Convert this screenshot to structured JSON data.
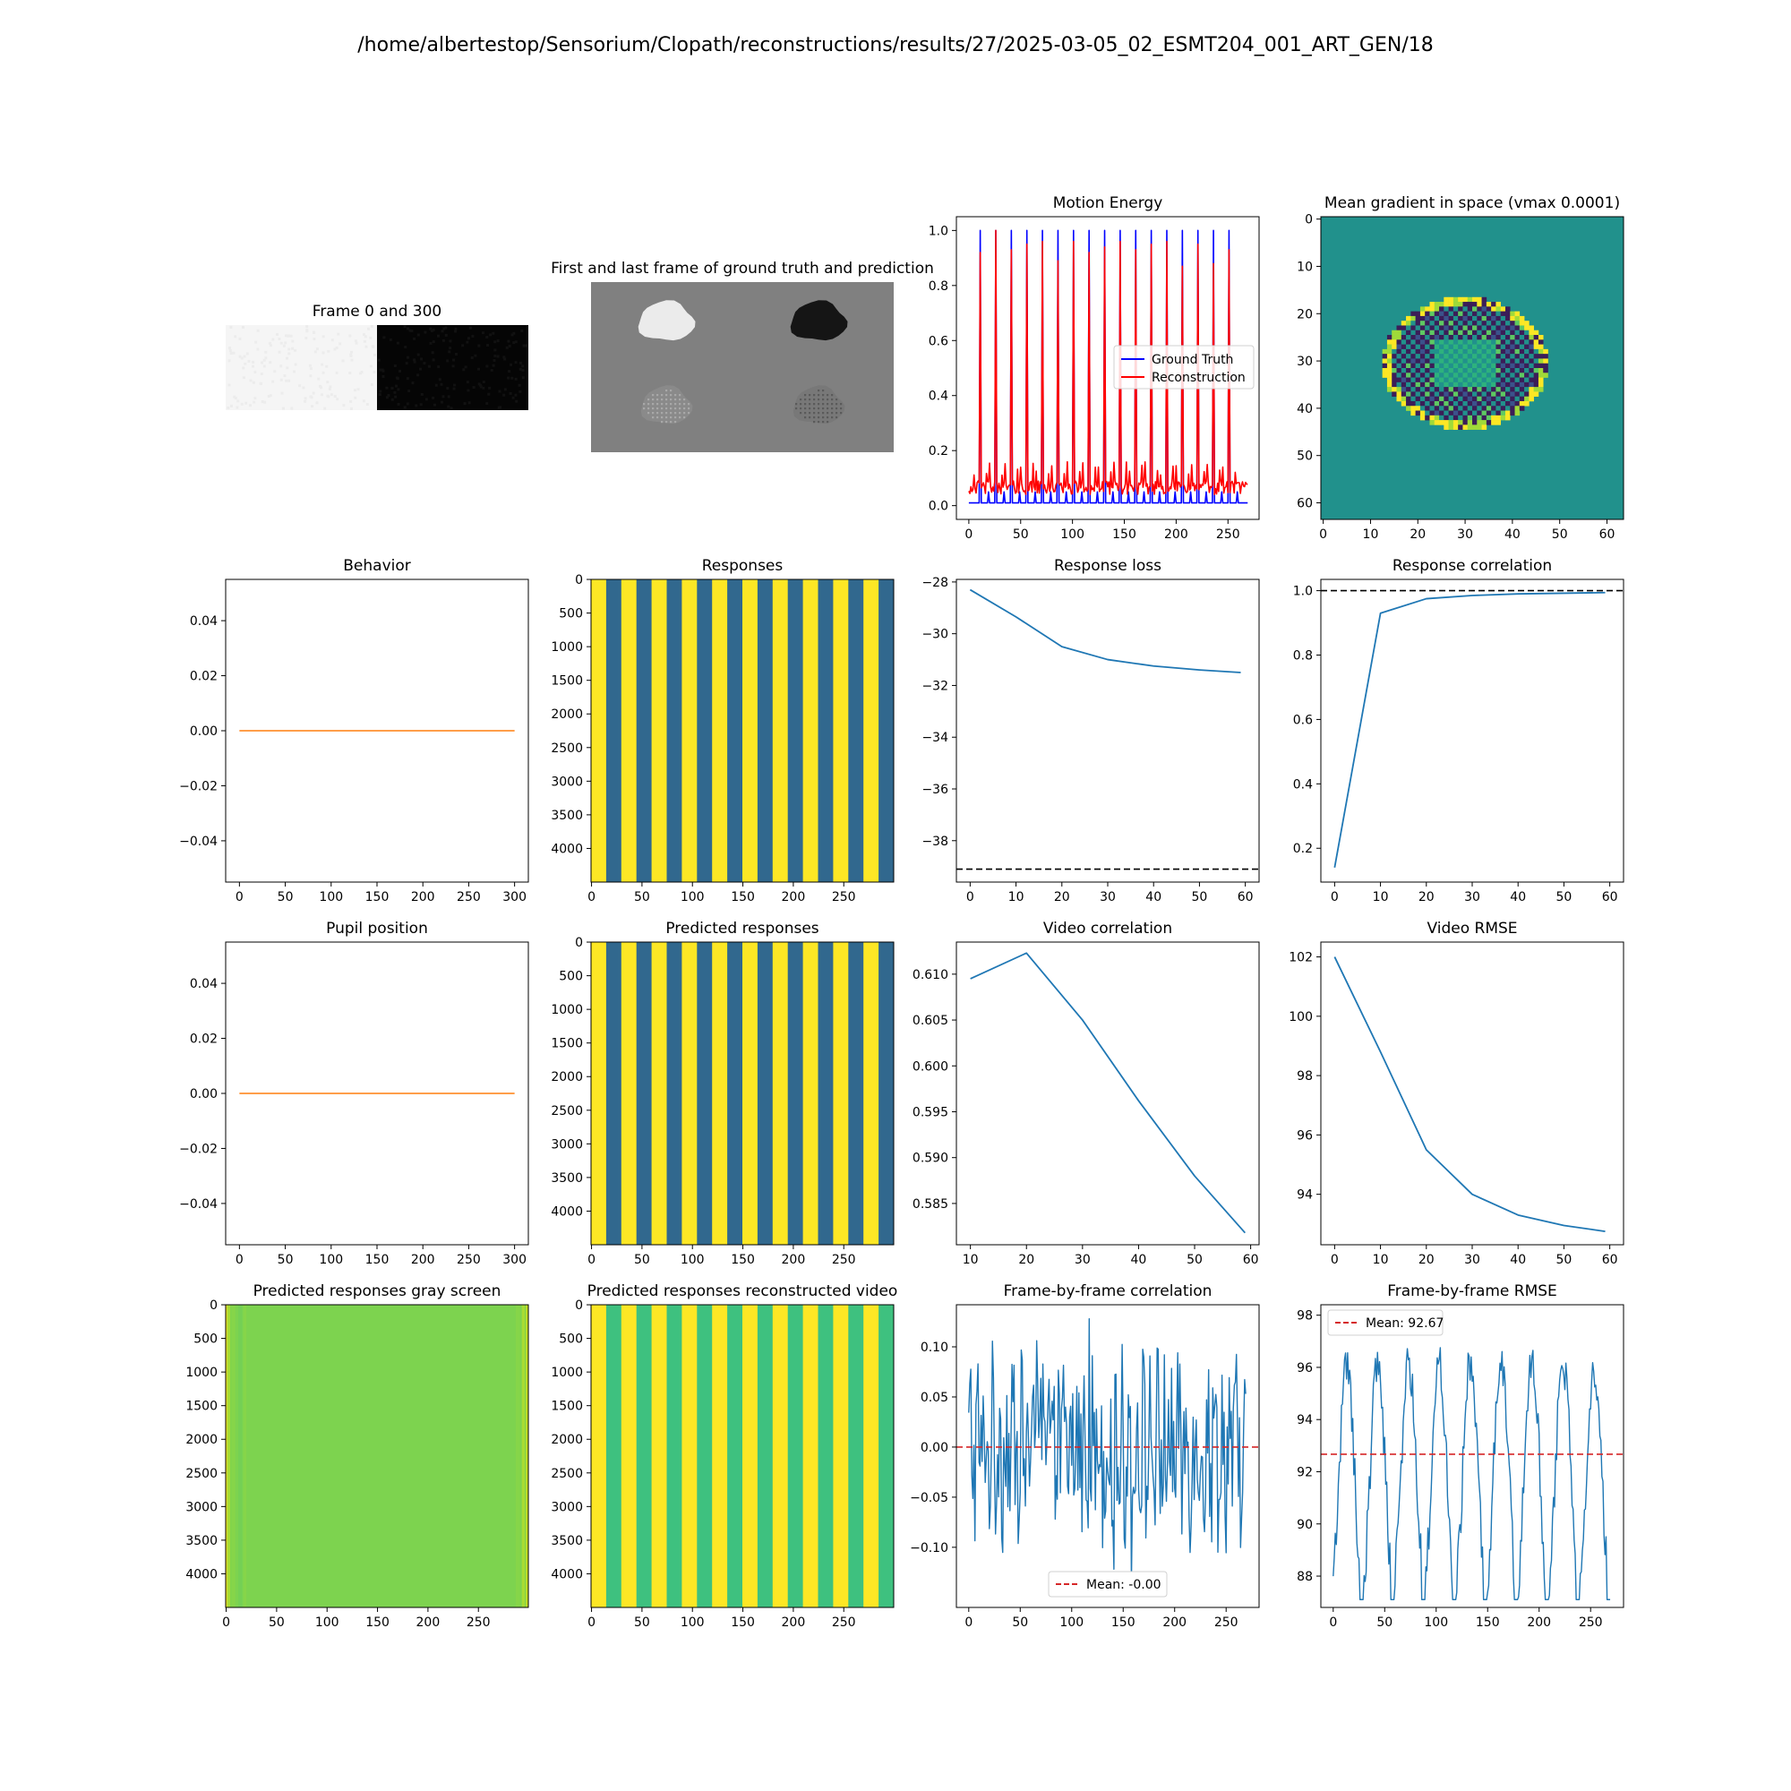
{
  "figure": {
    "suptitle": "/home/albertestop/Sensorium/Clopath/reconstructions/results/27/2025-03-05_02_ESMT204_001_ART_GEN/18"
  },
  "colors": {
    "ground_truth": "#0000ff",
    "reconstruction": "#ff0000",
    "line": "#1f77b4",
    "behavior_line": "#ff7f0e",
    "reference_dashed": "#000000",
    "mean_dashed": "#d62728",
    "viridis_yellow": "#fde725",
    "viridis_teal": "#31688e",
    "viridis_green": "#3ec17f",
    "viridis_lightgreen": "#7dd34f",
    "viridis_darkpurple": "#3b1d58",
    "viridis_mid": "#21918c"
  },
  "chart_data": [
    {
      "id": "frame-0-300",
      "type": "image",
      "title": "Frame 0 and 300",
      "panels": [
        "light",
        "dark"
      ]
    },
    {
      "id": "first-last",
      "type": "image",
      "title": "First and last frame of ground truth and prediction"
    },
    {
      "id": "motion-energy",
      "type": "line",
      "title": "Motion Energy",
      "xlim": [
        -12,
        280
      ],
      "ylim": [
        -0.05,
        1.05
      ],
      "xticks": [
        0,
        50,
        100,
        150,
        200,
        250
      ],
      "yticks": [
        0.0,
        0.2,
        0.4,
        0.6,
        0.8,
        1.0
      ],
      "ytick_labels": [
        "0.0",
        "0.2",
        "0.4",
        "0.6",
        "0.8",
        "1.0"
      ],
      "legend": [
        "Ground Truth",
        "Reconstruction"
      ],
      "legend_loc": "center right",
      "spike_positions": [
        11,
        26,
        41,
        56,
        71,
        86,
        101,
        116,
        131,
        146,
        161,
        176,
        191,
        206,
        221,
        236,
        251
      ],
      "gt_spike_height": 1.0,
      "gt_baseline": 0.01,
      "recon_spike_heights": [
        0.92,
        1.0,
        0.93,
        0.95,
        0.96,
        0.89,
        0.96,
        0.92,
        0.94,
        0.96,
        0.93,
        0.95,
        0.96,
        0.87,
        0.95,
        0.88,
        0.93
      ],
      "recon_baseline": 0.04,
      "x_end": 269
    },
    {
      "id": "mean-gradient",
      "type": "heatmap",
      "title": "Mean gradient in space (vmax 0.0001)",
      "xlim": [
        -0.5,
        63.5
      ],
      "ylim": [
        63.5,
        -0.5
      ],
      "xticks": [
        0,
        10,
        20,
        30,
        40,
        50,
        60
      ],
      "yticks": [
        0,
        10,
        20,
        30,
        40,
        50,
        60
      ],
      "ellipse": {
        "cx": 30,
        "cy": 30.5,
        "rx": 17.5,
        "ry": 14
      }
    },
    {
      "id": "behavior",
      "type": "line",
      "title": "Behavior",
      "xlim": [
        -15,
        315
      ],
      "ylim": [
        -0.055,
        0.055
      ],
      "xticks": [
        0,
        50,
        100,
        150,
        200,
        250,
        300
      ],
      "yticks": [
        -0.04,
        -0.02,
        0.0,
        0.02,
        0.04
      ],
      "ytick_labels": [
        "−0.04",
        "−0.02",
        "0.00",
        "0.02",
        "0.04"
      ],
      "x": [
        0,
        300
      ],
      "y": [
        0,
        0
      ]
    },
    {
      "id": "responses",
      "type": "heatmap",
      "title": "Responses",
      "xlim": [
        -0.5,
        299.5
      ],
      "ylim": [
        4500,
        -0.5
      ],
      "xticks": [
        0,
        50,
        100,
        150,
        200,
        250
      ],
      "yticks": [
        0,
        500,
        1000,
        1500,
        2000,
        2500,
        3000,
        3500,
        4000
      ],
      "stripe_period": 30,
      "stripe_colors": [
        "#fde725",
        "#31688e"
      ]
    },
    {
      "id": "response-loss",
      "type": "line",
      "title": "Response loss",
      "xlim": [
        -3,
        63
      ],
      "ylim": [
        -39.6,
        -27.9
      ],
      "xticks": [
        0,
        10,
        20,
        30,
        40,
        50,
        60
      ],
      "yticks": [
        -38,
        -36,
        -34,
        -32,
        -30,
        -28
      ],
      "ytick_labels": [
        "−38",
        "−36",
        "−34",
        "−32",
        "−30",
        "−28"
      ],
      "x": [
        0,
        10,
        20,
        30,
        40,
        50,
        59
      ],
      "y": [
        -28.3,
        -29.35,
        -30.5,
        -31.0,
        -31.25,
        -31.4,
        -31.5
      ],
      "hline": -39.1
    },
    {
      "id": "response-correlation",
      "type": "line",
      "title": "Response correlation",
      "xlim": [
        -3,
        63
      ],
      "ylim": [
        0.095,
        1.035
      ],
      "xticks": [
        0,
        10,
        20,
        30,
        40,
        50,
        60
      ],
      "yticks": [
        0.2,
        0.4,
        0.6,
        0.8,
        1.0
      ],
      "ytick_labels": [
        "0.2",
        "0.4",
        "0.6",
        "0.8",
        "1.0"
      ],
      "x": [
        0,
        10,
        20,
        30,
        40,
        50,
        59
      ],
      "y": [
        0.14,
        0.93,
        0.975,
        0.985,
        0.99,
        0.992,
        0.994
      ],
      "hline": 1.0
    },
    {
      "id": "pupil-position",
      "type": "line",
      "title": "Pupil position",
      "xlim": [
        -15,
        315
      ],
      "ylim": [
        -0.055,
        0.055
      ],
      "xticks": [
        0,
        50,
        100,
        150,
        200,
        250,
        300
      ],
      "yticks": [
        -0.04,
        -0.02,
        0.0,
        0.02,
        0.04
      ],
      "ytick_labels": [
        "−0.04",
        "−0.02",
        "0.00",
        "0.02",
        "0.04"
      ],
      "x": [
        0,
        300
      ],
      "y": [
        0,
        0
      ]
    },
    {
      "id": "predicted-responses",
      "type": "heatmap",
      "title": "Predicted responses",
      "xlim": [
        -0.5,
        299.5
      ],
      "ylim": [
        4500,
        -0.5
      ],
      "xticks": [
        0,
        50,
        100,
        150,
        200,
        250
      ],
      "yticks": [
        0,
        500,
        1000,
        1500,
        2000,
        2500,
        3000,
        3500,
        4000
      ],
      "stripe_period": 30,
      "stripe_colors": [
        "#fde725",
        "#31688e"
      ]
    },
    {
      "id": "video-correlation",
      "type": "line",
      "title": "Video correlation",
      "xlim": [
        7.5,
        61.5
      ],
      "ylim": [
        0.5805,
        0.6135
      ],
      "xticks": [
        10,
        20,
        30,
        40,
        50,
        60
      ],
      "yticks": [
        0.585,
        0.59,
        0.595,
        0.6,
        0.605,
        0.61
      ],
      "ytick_labels": [
        "0.585",
        "0.590",
        "0.595",
        "0.600",
        "0.605",
        "0.610"
      ],
      "x": [
        10,
        20,
        30,
        40,
        50,
        59
      ],
      "y": [
        0.6095,
        0.6123,
        0.605,
        0.5962,
        0.588,
        0.5818
      ]
    },
    {
      "id": "video-rmse",
      "type": "line",
      "title": "Video RMSE",
      "xlim": [
        -3,
        63
      ],
      "ylim": [
        92.3,
        102.5
      ],
      "xticks": [
        0,
        10,
        20,
        30,
        40,
        50,
        60
      ],
      "yticks": [
        94,
        96,
        98,
        100,
        102
      ],
      "ytick_labels": [
        "94",
        "96",
        "98",
        "100",
        "102"
      ],
      "x": [
        0,
        10,
        20,
        30,
        40,
        50,
        59
      ],
      "y": [
        102.0,
        98.8,
        95.5,
        94.0,
        93.3,
        92.95,
        92.75
      ]
    },
    {
      "id": "predicted-gray",
      "type": "heatmap",
      "title": "Predicted responses gray screen",
      "xlim": [
        -0.5,
        299.5
      ],
      "ylim": [
        4500,
        -0.5
      ],
      "xticks": [
        0,
        50,
        100,
        150,
        200,
        250
      ],
      "yticks": [
        0,
        500,
        1000,
        1500,
        2000,
        2500,
        3000,
        3500,
        4000
      ]
    },
    {
      "id": "predicted-recon-video",
      "type": "heatmap",
      "title": "Predicted responses reconstructed video",
      "xlim": [
        -0.5,
        299.5
      ],
      "ylim": [
        4500,
        -0.5
      ],
      "xticks": [
        0,
        50,
        100,
        150,
        200,
        250
      ],
      "yticks": [
        0,
        500,
        1000,
        1500,
        2000,
        2500,
        3000,
        3500,
        4000
      ],
      "stripe_period": 30,
      "stripe_colors": [
        "#fde725",
        "#3ec17f"
      ]
    },
    {
      "id": "frame-corr",
      "type": "line",
      "title": "Frame-by-frame correlation",
      "xlim": [
        -12,
        282
      ],
      "ylim": [
        -0.16,
        0.142
      ],
      "xticks": [
        0,
        50,
        100,
        150,
        200,
        250
      ],
      "yticks": [
        -0.1,
        -0.05,
        0.0,
        0.05,
        0.1
      ],
      "ytick_labels": [
        "−0.10",
        "−0.05",
        "0.00",
        "0.05",
        "0.10"
      ],
      "mean": 0.0,
      "legend": [
        "Mean: -0.00"
      ],
      "legend_loc": "lower center",
      "n": 270
    },
    {
      "id": "frame-rmse",
      "type": "line",
      "title": "Frame-by-frame RMSE",
      "xlim": [
        -12,
        282
      ],
      "ylim": [
        86.8,
        98.4
      ],
      "xticks": [
        0,
        50,
        100,
        150,
        200,
        250
      ],
      "yticks": [
        88,
        90,
        92,
        94,
        96,
        98
      ],
      "ytick_labels": [
        "88",
        "90",
        "92",
        "94",
        "96",
        "98"
      ],
      "mean": 92.67,
      "legend": [
        "Mean: 92.67"
      ],
      "legend_loc": "upper left",
      "n": 270
    }
  ]
}
